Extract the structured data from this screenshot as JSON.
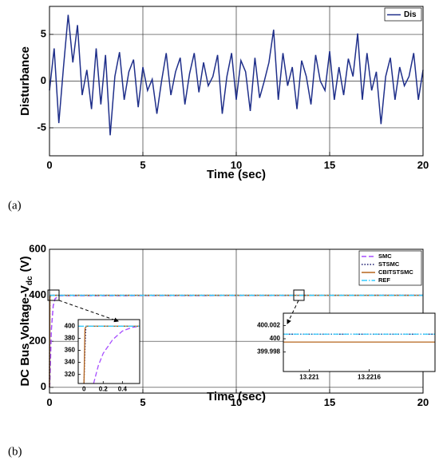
{
  "chart_data": [
    {
      "type": "line",
      "label": "(a)",
      "xlabel": "Time (sec)",
      "ylabel": "Disturbance",
      "x": [
        0,
        0.25,
        0.5,
        0.75,
        1,
        1.25,
        1.5,
        1.75,
        2,
        2.25,
        2.5,
        2.75,
        3,
        3.25,
        3.5,
        3.75,
        4,
        4.25,
        4.5,
        4.75,
        5,
        5.25,
        5.5,
        5.75,
        6,
        6.25,
        6.5,
        6.75,
        7,
        7.25,
        7.5,
        7.75,
        8,
        8.25,
        8.5,
        8.75,
        9,
        9.25,
        9.5,
        9.75,
        10,
        10.25,
        10.5,
        10.75,
        11,
        11.25,
        11.5,
        11.75,
        12,
        12.25,
        12.5,
        12.75,
        13,
        13.25,
        13.5,
        13.75,
        14,
        14.25,
        14.5,
        14.75,
        15,
        15.25,
        15.5,
        15.75,
        16,
        16.25,
        16.5,
        16.75,
        17,
        17.25,
        17.5,
        17.75,
        18,
        18.25,
        18.5,
        18.75,
        19,
        19.25,
        19.5,
        19.75,
        20
      ],
      "series": [
        {
          "name": "Dis",
          "color": "#1f2f8a",
          "style": "solid",
          "values": [
            -1,
            3.5,
            -4.5,
            1.5,
            7.1,
            2,
            6.0,
            -1.5,
            1.2,
            -3,
            3.5,
            -2.5,
            2.8,
            -5.8,
            0.5,
            3.1,
            -2,
            1,
            2.3,
            -2.8,
            1.5,
            -1,
            0.2,
            -3.5,
            0,
            3,
            -1.5,
            1,
            2.5,
            -2.5,
            0.8,
            3,
            -1.2,
            2,
            -0.5,
            0.5,
            2.8,
            -3.5,
            0.5,
            3,
            -2,
            2.2,
            1,
            -3.2,
            2.5,
            -1.8,
            0,
            2,
            5.5,
            -2,
            3,
            -0.5,
            1.5,
            -3,
            2.2,
            0.5,
            -2.5,
            2.8,
            0,
            -1,
            3.2,
            -2,
            1.5,
            -1.5,
            2.4,
            0.5,
            5.1,
            -2,
            3,
            -1,
            1,
            -4.6,
            0.5,
            2.5,
            -2,
            1.5,
            -0.5,
            0.5,
            3,
            -2,
            1.2
          ]
        }
      ],
      "xlim": [
        0,
        20
      ],
      "xticks": [
        0,
        5,
        10,
        15,
        20
      ],
      "ylim": [
        -8,
        8
      ],
      "yticks": [
        -5,
        0,
        5
      ],
      "grid": true,
      "legend": "upper right"
    },
    {
      "type": "line",
      "label": "(b)",
      "xlabel": "Time (sec)",
      "ylabel": "DC Bus Voltage-V",
      "ylabel_sub": "dc",
      "ylabel_suffix": "(V)",
      "x": [
        0,
        0.02,
        0.1,
        0.2,
        0.3,
        0.5,
        20
      ],
      "series": [
        {
          "name": "SMC",
          "color": "#a64dff",
          "style": "dashed",
          "values": [
            0,
            20,
            250,
            355,
            385,
            398,
            400
          ]
        },
        {
          "name": "STSMC",
          "color": "#1a1a6e",
          "style": "dotted",
          "values": [
            0,
            400,
            400,
            400,
            400,
            400,
            400
          ]
        },
        {
          "name": "CBITSTSMC",
          "color": "#b5651d",
          "style": "solid",
          "values": [
            0,
            395,
            400,
            400,
            400,
            400,
            400
          ]
        },
        {
          "name": "REF",
          "color": "#33ccff",
          "style": "dashdot",
          "values": [
            400,
            400,
            400,
            400,
            400,
            400,
            400
          ]
        }
      ],
      "xlim": [
        0,
        20
      ],
      "xticks": [
        0,
        5,
        10,
        15,
        20
      ],
      "ylim": [
        -25,
        600
      ],
      "yticks": [
        0,
        200,
        400,
        600
      ],
      "grid": true,
      "legend": "upper right"
    },
    {
      "type": "line",
      "x": [
        -0.06,
        0,
        0.01,
        0.02,
        0.1,
        0.15,
        0.2,
        0.3,
        0.4,
        0.5,
        0.58
      ],
      "series": [
        {
          "color": "#a64dff",
          "style": "dashed",
          "values": [
            null,
            null,
            null,
            null,
            305,
            335,
            355,
            378,
            392,
            398,
            400
          ]
        },
        {
          "color": "#1a1a6e",
          "style": "dotted",
          "values": [
            null,
            305,
            360,
            400,
            400,
            400,
            400,
            400,
            400,
            400,
            400
          ]
        },
        {
          "color": "#b5651d",
          "style": "solid",
          "values": [
            null,
            305,
            395,
            400,
            400,
            400,
            400,
            400,
            400,
            400,
            400
          ]
        },
        {
          "color": "#33ccff",
          "style": "dashdot",
          "values": [
            400,
            400,
            400,
            400,
            400,
            400,
            400,
            400,
            400,
            400,
            400
          ]
        }
      ],
      "xlim": [
        -0.06,
        0.58
      ],
      "xticks": [
        0,
        0.2,
        0.4
      ],
      "ylim": [
        305,
        411
      ],
      "yticks": [
        320,
        340,
        360,
        380,
        400
      ],
      "grid": false
    },
    {
      "type": "line",
      "x": [
        13.22074,
        13.22226
      ],
      "series": [
        {
          "color": "#1a1a6e",
          "style": "dotted",
          "values": [
            400.0007,
            400.0007
          ]
        },
        {
          "color": "#33ccff",
          "style": "dashdot",
          "values": [
            400.0007,
            400.0007
          ]
        },
        {
          "color": "#b5651d",
          "style": "solid",
          "values": [
            399.9995,
            399.9995
          ]
        }
      ],
      "xlim": [
        13.22074,
        13.22226
      ],
      "xticks": [
        13.221,
        13.2216
      ],
      "ylim": [
        399.995,
        400.0039
      ],
      "yticks": [
        399.998,
        400,
        400.002
      ],
      "grid": false
    }
  ]
}
